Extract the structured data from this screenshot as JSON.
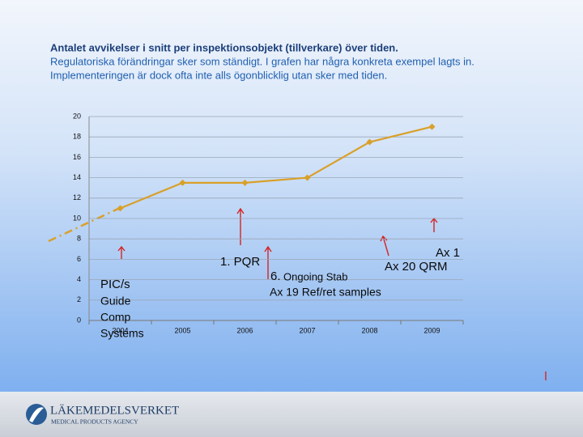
{
  "chart_data": {
    "type": "line",
    "title": "Antalet avvikelser i snitt per inspektionsobjekt (tillverkare) över tiden.",
    "subtitle": [
      "Regulatoriska förändringar sker som ständigt. I grafen har några konkreta exempel lagts in.",
      "Implementeringen är dock ofta inte alls ögonblicklig utan sker med tiden."
    ],
    "categories": [
      "2004",
      "2005",
      "2006",
      "2007",
      "2008",
      "2009"
    ],
    "values": [
      11,
      13.5,
      13.5,
      14,
      17.5,
      19
    ],
    "color": "#d9a02a",
    "ylim": [
      0,
      20
    ],
    "yticks": [
      0,
      2,
      4,
      6,
      8,
      10,
      12,
      14,
      16,
      18,
      20
    ],
    "grid": true,
    "annotations": [
      "PIC/s",
      "Guide",
      "Comp",
      "Systems",
      "1. PQR",
      "6.",
      "Ongoing Stab",
      "Ax 19 Ref/ret samples",
      "Ax 1",
      "Ax 20 QRM"
    ]
  },
  "footer": {
    "name": "LÄKEMEDELSVERKET",
    "tagline": "MEDICAL PRODUCTS AGENCY"
  }
}
